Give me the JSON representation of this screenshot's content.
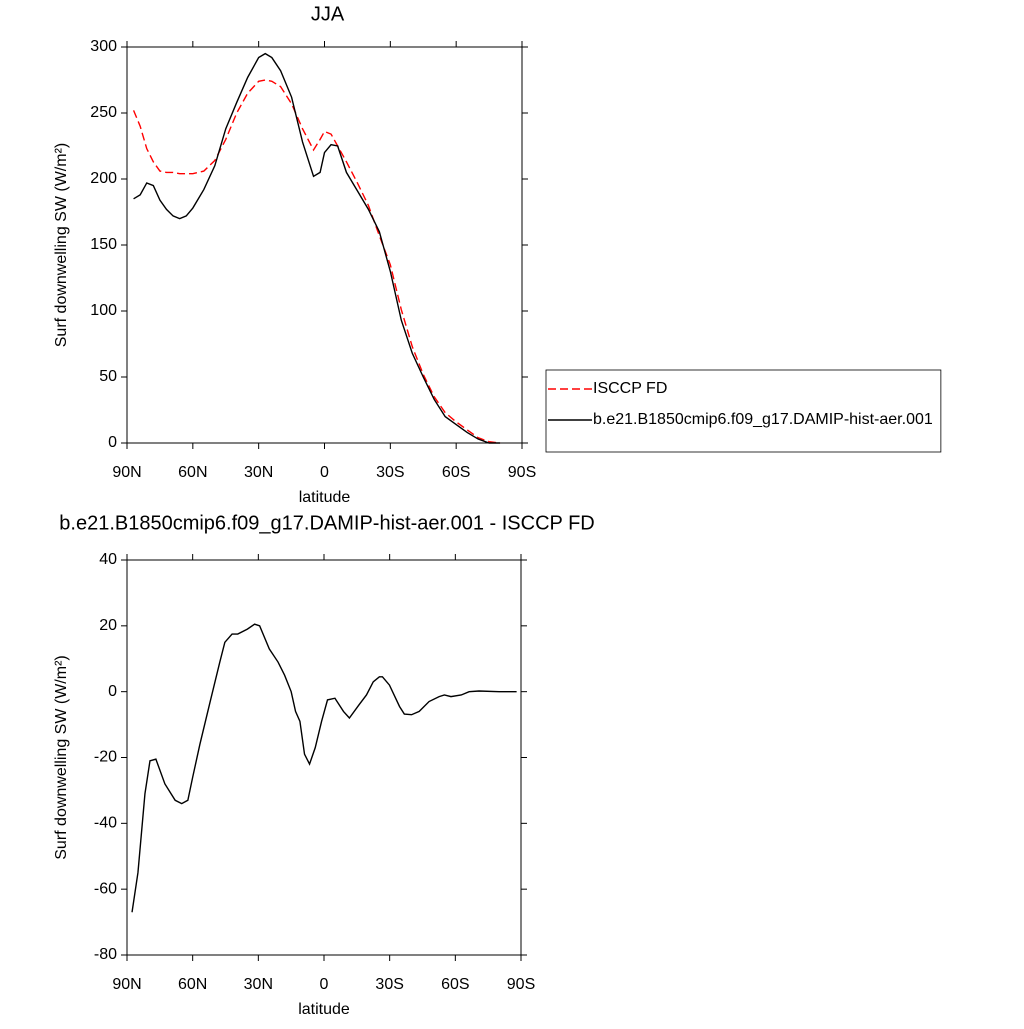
{
  "chart_data": [
    {
      "type": "line",
      "title": "JJA",
      "xlabel": "latitude",
      "ylabel": "Surf downwelling SW (W/m²)",
      "x": [
        87,
        84,
        81,
        78,
        75,
        72,
        69,
        66,
        63,
        60,
        55,
        50,
        45,
        40,
        35,
        30,
        27,
        24,
        20,
        15,
        10,
        5,
        2,
        0,
        -3,
        -6,
        -10,
        -15,
        -20,
        -25,
        -30,
        -35,
        -40,
        -45,
        -50,
        -55,
        -60,
        -65,
        -70,
        -75,
        -80
      ],
      "series": [
        {
          "name": "ISCCP FD",
          "color": "#ff0000",
          "dash": true,
          "values": [
            252,
            240,
            223,
            213,
            206,
            205,
            205,
            204,
            204,
            204,
            206,
            214,
            230,
            250,
            265,
            274,
            275,
            274,
            270,
            257,
            238,
            222,
            230,
            236,
            234,
            225,
            213,
            197,
            180,
            157,
            135,
            101,
            73,
            52,
            35,
            23,
            16,
            10,
            4,
            1,
            0
          ]
        },
        {
          "name": "b.e21.B1850cmip6.f09_g17.DAMIP-hist-aer.001",
          "color": "#000000",
          "dash": false,
          "values": [
            185,
            188,
            197,
            195,
            184,
            177,
            172,
            170,
            172,
            178,
            192,
            210,
            238,
            258,
            277,
            292,
            295,
            292,
            282,
            262,
            228,
            202,
            205,
            220,
            226,
            225,
            205,
            191,
            177,
            160,
            130,
            93,
            68,
            50,
            33,
            20,
            14,
            8,
            3,
            0,
            0
          ]
        }
      ],
      "xlim": [
        90,
        -90
      ],
      "xticks": [
        {
          "value": 90,
          "label": "90N"
        },
        {
          "value": 60,
          "label": "60N"
        },
        {
          "value": 30,
          "label": "30N"
        },
        0,
        {
          "value": -30,
          "label": "30S"
        },
        {
          "value": -60,
          "label": "60S"
        },
        {
          "value": -90,
          "label": "90S"
        }
      ],
      "ylim": [
        0,
        300
      ],
      "yticks": [
        0,
        50,
        100,
        150,
        200,
        250,
        300
      ],
      "legend": "right"
    },
    {
      "type": "line",
      "title": "b.e21.B1850cmip6.f09_g17.DAMIP-hist-aer.001 - ISCCP FD",
      "xlabel": "latitude",
      "ylabel": "Surf downwelling SW (W/m²)",
      "x": [
        87.7,
        85,
        81.8,
        79.5,
        76.8,
        72.7,
        68,
        65,
        62.2,
        60,
        56.7,
        52,
        47.6,
        45.3,
        42,
        39.4,
        35,
        31.7,
        29.4,
        25,
        21,
        18,
        15,
        13,
        11,
        8.9,
        6.6,
        4,
        1.1,
        -1.6,
        -5,
        -8.9,
        -11.6,
        -16,
        -19.4,
        -22.5,
        -25.3,
        -26.7,
        -29.9,
        -34.5,
        -36.7,
        -40,
        -43.5,
        -48,
        -52.6,
        -55,
        -58,
        -62.7,
        -66.3,
        -70.8,
        -80,
        -88
      ],
      "values": [
        -67,
        -55,
        -31,
        -21,
        -20.5,
        -28,
        -33,
        -34,
        -33,
        -26,
        -16,
        -3,
        9,
        15,
        17.5,
        17.5,
        19,
        20.5,
        20,
        13,
        9,
        5,
        0,
        -6,
        -9,
        -19,
        -22,
        -17,
        -9,
        -2.5,
        -2,
        -6,
        -8,
        -4,
        -1,
        3,
        4.5,
        4.5,
        2,
        -4.5,
        -6.8,
        -7,
        -6,
        -3,
        -1.5,
        -1,
        -1.5,
        -1,
        0,
        0.2,
        0,
        0
      ],
      "color": "#000000",
      "xlim": [
        90,
        -90
      ],
      "xticks": [
        {
          "value": 90,
          "label": "90N"
        },
        {
          "value": 60,
          "label": "60N"
        },
        {
          "value": 30,
          "label": "30N"
        },
        0,
        {
          "value": -30,
          "label": "30S"
        },
        {
          "value": -60,
          "label": "60S"
        },
        {
          "value": -90,
          "label": "90S"
        }
      ],
      "ylim": [
        -80,
        40
      ],
      "yticks": [
        -80,
        -60,
        -40,
        -20,
        0,
        20,
        40
      ]
    }
  ]
}
